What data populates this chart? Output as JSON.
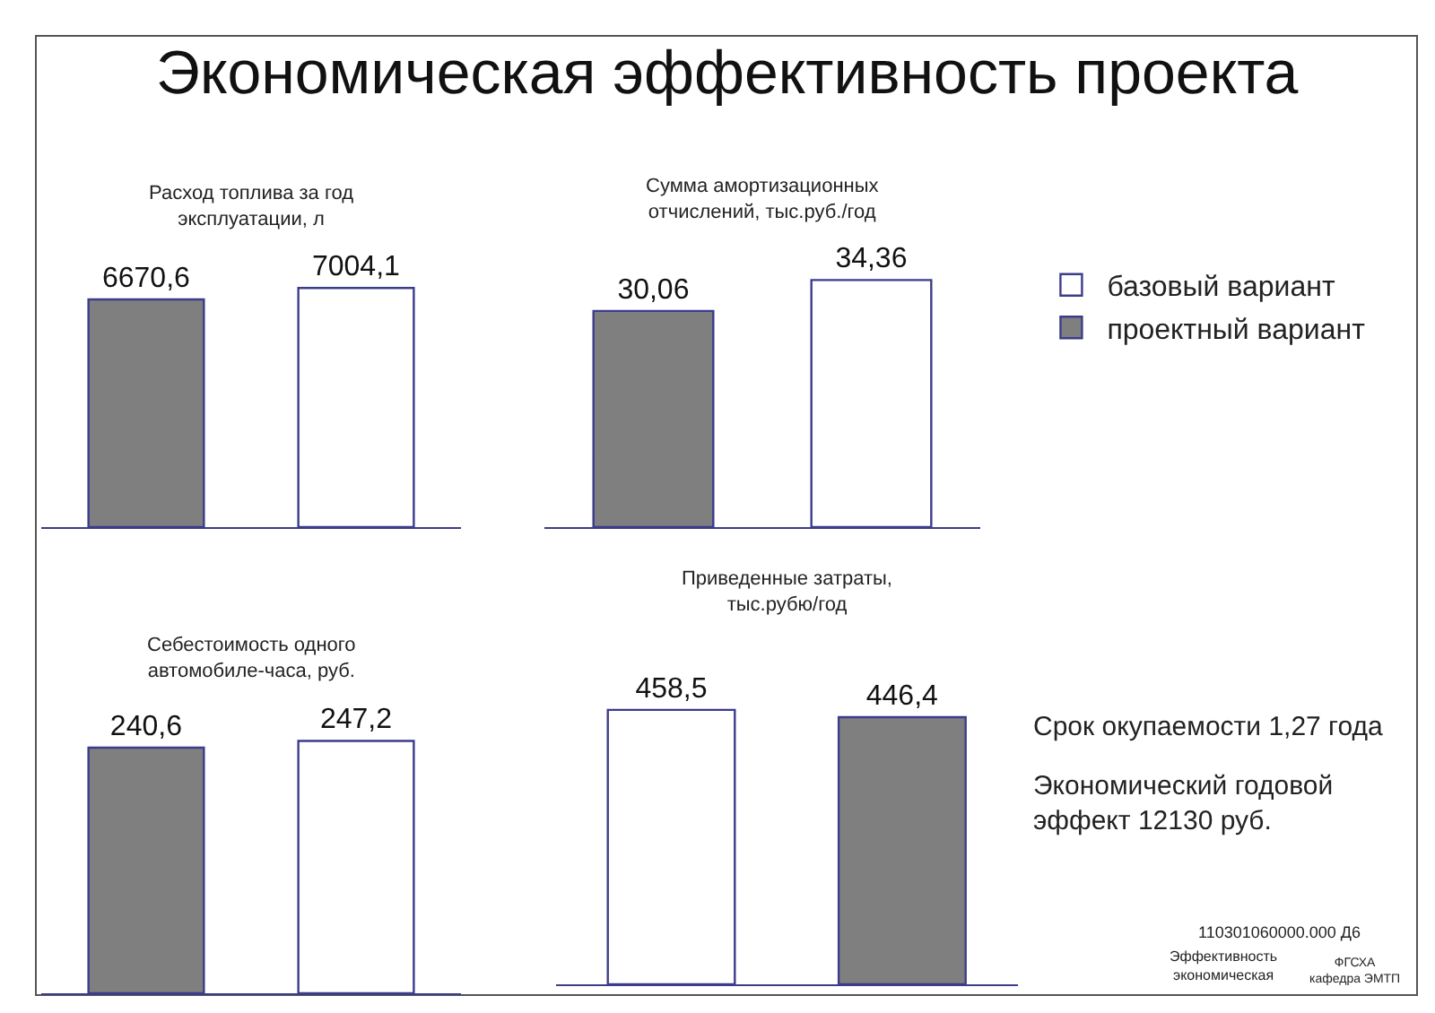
{
  "chart_data": [
    {
      "type": "bar",
      "title": "Расход топлива за год эксплуатации, л",
      "categories": [
        null,
        null
      ],
      "values": [
        6670.6,
        7004.1
      ],
      "colors": [
        "#7f7f7f",
        "#ffffff"
      ],
      "value_labels": [
        "6670,6",
        "7004,1"
      ]
    },
    {
      "type": "bar",
      "title": "Сумма амортизационных отчислений, тыс.руб./год",
      "categories": [
        null,
        null
      ],
      "values": [
        30.06,
        34.36
      ],
      "colors": [
        "#7f7f7f",
        "#ffffff"
      ],
      "value_labels": [
        "30,06",
        "34,36"
      ]
    },
    {
      "type": "bar",
      "title": "Себестоимость одного автомобиле-часа, руб.",
      "categories": [
        null,
        null
      ],
      "values": [
        240.6,
        247.2
      ],
      "colors": [
        "#7f7f7f",
        "#ffffff"
      ],
      "value_labels": [
        "240,6",
        "247,2"
      ]
    },
    {
      "type": "bar",
      "title": "Приведенные затраты, тыс.рубю/год",
      "categories": [
        null,
        null
      ],
      "legend": "right",
      "series": [
        {
          "name": "базовый вариант",
          "color": "#ffffff",
          "values": [
            458.5,
            null
          ],
          "value_labels": [
            "458,5",
            null
          ]
        },
        {
          "name": "проектный вариант",
          "color": "#7f7f7f",
          "values": [
            null,
            446.4
          ],
          "value_labels": [
            null,
            "446,4"
          ]
        }
      ]
    },
    {
      "type": "other",
      "title": "Экономическая эффективность проекта",
      "annotations": [
        "Срок окупаемости 1,27 года",
        "Экономический годовой эффект 12130 руб.",
        "110301060000.000 Д6",
        "Эффективность экономическая",
        "ФГСХА кафедра ЭМТП"
      ]
    }
  ]
}
